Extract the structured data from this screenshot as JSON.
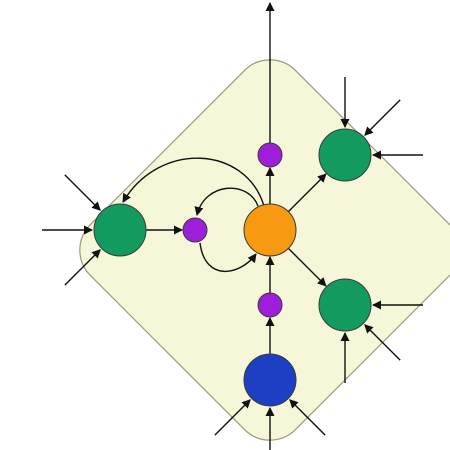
{
  "colors": {
    "background": "#ffffff",
    "region_fill": "#f6f7d8",
    "region_stroke": "#9a9a7a",
    "edge": "#111111",
    "central": "#f79a12",
    "peripheral": "#139a5e",
    "source": "#1d3fc4",
    "intermediate": "#9d1fdc"
  },
  "nodes": [
    {
      "id": "center",
      "role": "central",
      "color_key": "central"
    },
    {
      "id": "mid-top",
      "role": "intermediate",
      "color_key": "intermediate"
    },
    {
      "id": "mid-left",
      "role": "intermediate",
      "color_key": "intermediate"
    },
    {
      "id": "mid-bottom",
      "role": "intermediate",
      "color_key": "intermediate"
    },
    {
      "id": "left",
      "role": "peripheral",
      "color_key": "peripheral"
    },
    {
      "id": "top-right",
      "role": "peripheral",
      "color_key": "peripheral"
    },
    {
      "id": "bottom-right",
      "role": "peripheral",
      "color_key": "peripheral"
    },
    {
      "id": "bottom",
      "role": "source",
      "color_key": "source"
    }
  ],
  "edges": [
    {
      "from": "mid-top",
      "to": "exterior-top"
    },
    {
      "from": "center",
      "to": "mid-top"
    },
    {
      "from": "center",
      "to": "top-right"
    },
    {
      "from": "center",
      "to": "bottom-right"
    },
    {
      "from": "center",
      "to": "left"
    },
    {
      "from": "center",
      "to": "mid-left"
    },
    {
      "from": "mid-left",
      "to": "center"
    },
    {
      "from": "left",
      "to": "mid-left"
    },
    {
      "from": "mid-bottom",
      "to": "center"
    },
    {
      "from": "bottom",
      "to": "mid-bottom"
    }
  ],
  "external_inputs": [
    {
      "node": "left",
      "count": 3
    },
    {
      "node": "top-right",
      "count": 3
    },
    {
      "node": "bottom-right",
      "count": 3
    },
    {
      "node": "bottom",
      "count": 3
    }
  ]
}
